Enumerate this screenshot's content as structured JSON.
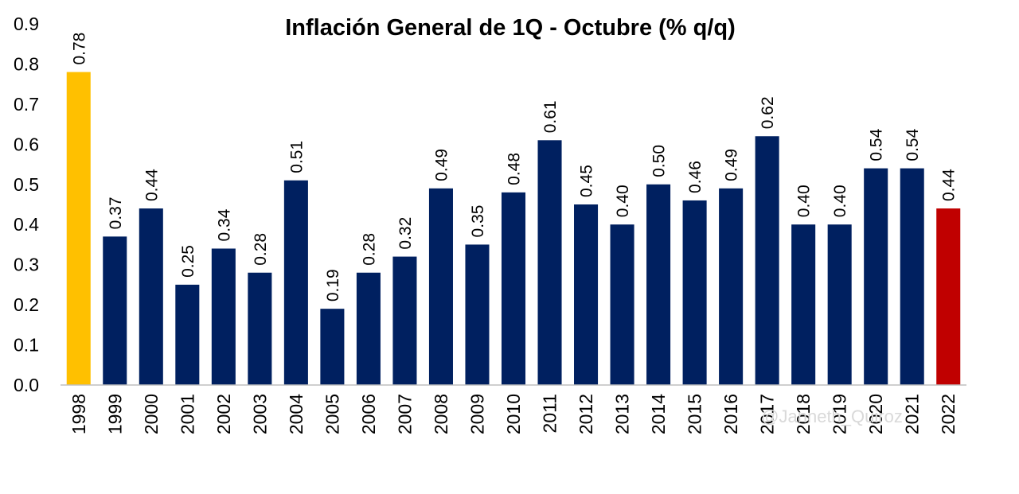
{
  "chart_data": {
    "type": "bar",
    "title": "Inflación General de 1Q - Octubre (% q/q)",
    "xlabel": "",
    "ylabel": "",
    "ylim": [
      0,
      0.9
    ],
    "yticks": [
      "0.0",
      "0.1",
      "0.2",
      "0.3",
      "0.4",
      "0.5",
      "0.6",
      "0.7",
      "0.8",
      "0.9"
    ],
    "grid": false,
    "legend": "none",
    "categories": [
      "1998",
      "1999",
      "2000",
      "2001",
      "2002",
      "2003",
      "2004",
      "2005",
      "2006",
      "2007",
      "2008",
      "2009",
      "2010",
      "2011",
      "2012",
      "2013",
      "2014",
      "2015",
      "2016",
      "2017",
      "2018",
      "2019",
      "2020",
      "2021",
      "2022"
    ],
    "values": [
      0.78,
      0.37,
      0.44,
      0.25,
      0.34,
      0.28,
      0.51,
      0.19,
      0.28,
      0.32,
      0.49,
      0.35,
      0.48,
      0.61,
      0.45,
      0.4,
      0.5,
      0.46,
      0.49,
      0.62,
      0.4,
      0.4,
      0.54,
      0.54,
      0.44
    ],
    "data_labels": [
      "0.78",
      "0.37",
      "0.44",
      "0.25",
      "0.34",
      "0.28",
      "0.51",
      "0.19",
      "0.28",
      "0.32",
      "0.49",
      "0.35",
      "0.48",
      "0.61",
      "0.45",
      "0.40",
      "0.50",
      "0.46",
      "0.49",
      "0.62",
      "0.40",
      "0.40",
      "0.54",
      "0.54",
      "0.44"
    ],
    "colors": {
      "default": "#002060",
      "highlight_first": "#FFC000",
      "highlight_last": "#C00000",
      "axis": "#bfbfbf"
    },
    "watermark": "@Janneth_Quiroz"
  }
}
